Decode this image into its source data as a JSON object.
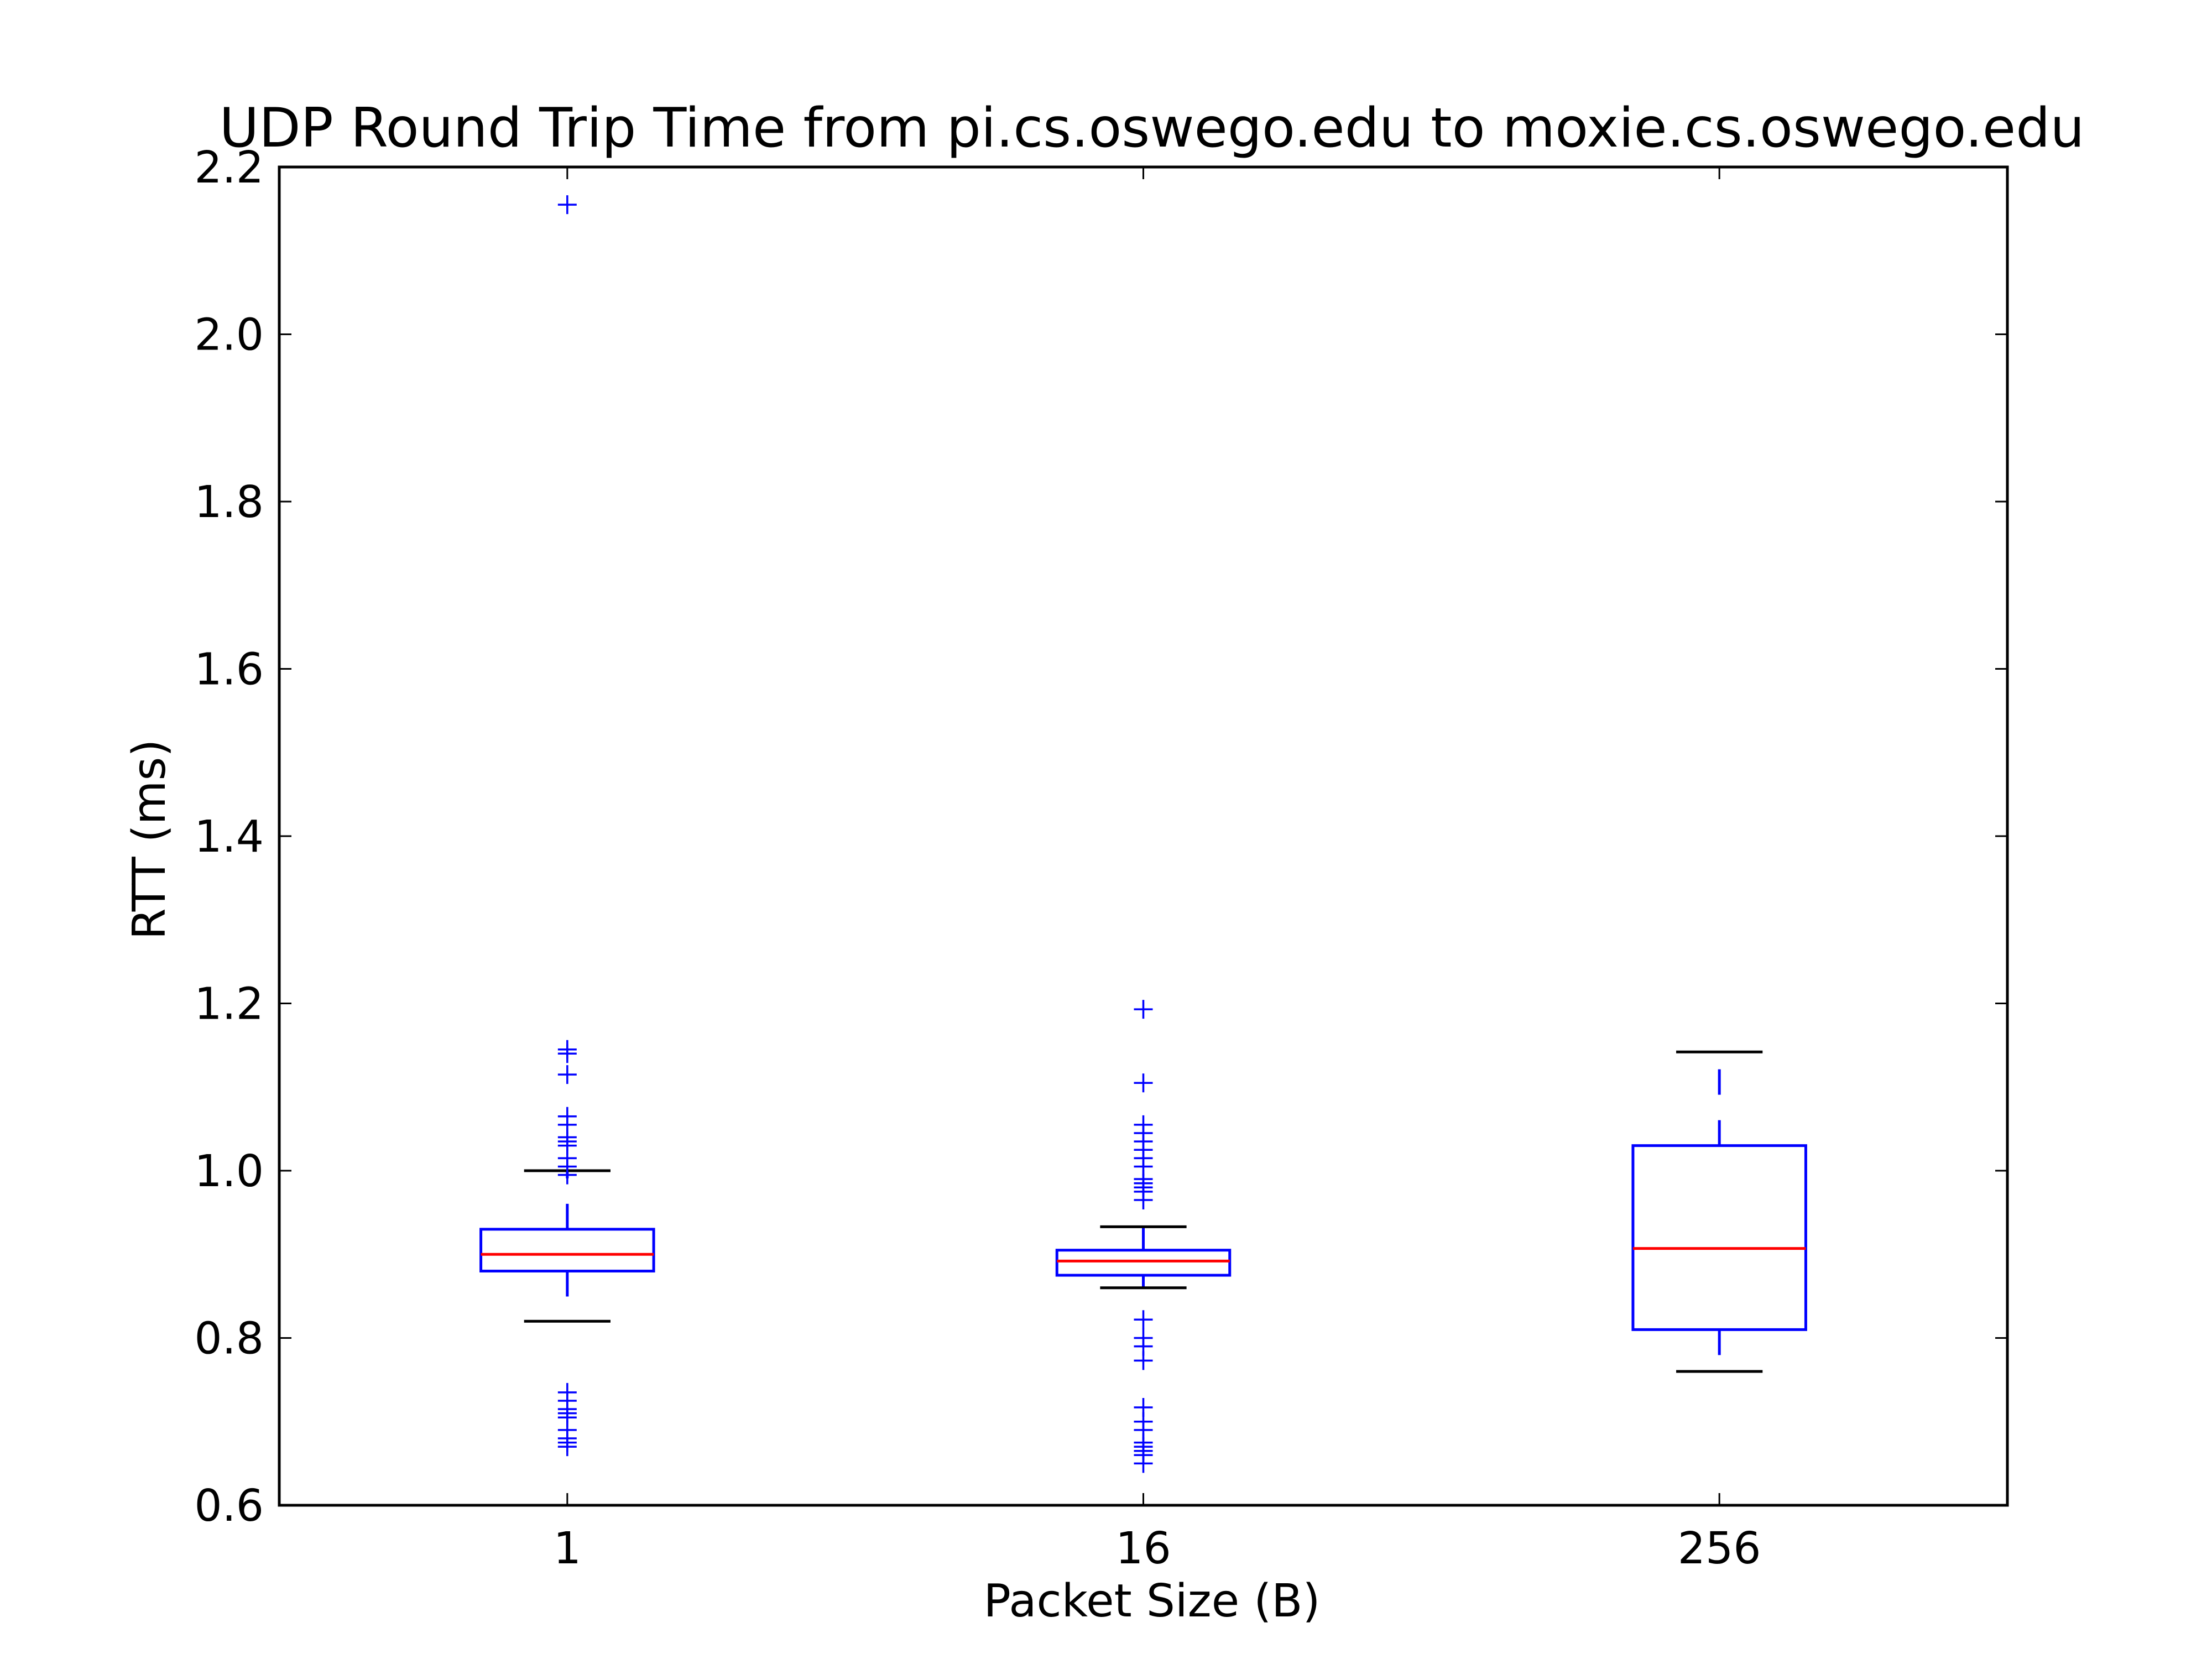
{
  "chart_data": {
    "type": "box",
    "title": "UDP Round Trip Time from pi.cs.oswego.edu to moxie.cs.oswego.edu",
    "xlabel": "Packet Size (B)",
    "ylabel": "RTT (ms)",
    "categories": [
      "1",
      "16",
      "256"
    ],
    "ylim": [
      0.6,
      2.2
    ],
    "yticks": [
      0.6,
      0.8,
      1.0,
      1.2,
      1.4,
      1.6,
      1.8,
      2.0,
      2.2
    ],
    "ytick_labels": [
      "0.6",
      "0.8",
      "1.0",
      "1.2",
      "1.4",
      "1.6",
      "1.8",
      "2.0",
      "2.2"
    ],
    "grid": false,
    "boxes": [
      {
        "category": "1",
        "whisker_low": 0.82,
        "q1": 0.88,
        "median": 0.9,
        "q3": 0.93,
        "whisker_high": 1.0,
        "outliers": [
          2.155,
          1.145,
          1.14,
          1.115,
          1.065,
          1.055,
          1.04,
          1.035,
          1.03,
          1.015,
          1.005,
          0.995,
          0.735,
          0.725,
          0.715,
          0.71,
          0.705,
          0.69,
          0.68,
          0.675,
          0.67
        ]
      },
      {
        "category": "16",
        "whisker_low": 0.86,
        "q1": 0.875,
        "median": 0.892,
        "q3": 0.905,
        "whisker_high": 0.933,
        "outliers": [
          1.193,
          1.105,
          1.055,
          1.045,
          1.035,
          1.025,
          1.015,
          1.005,
          0.99,
          0.985,
          0.98,
          0.975,
          0.965,
          0.822,
          0.8,
          0.79,
          0.773,
          0.717,
          0.7,
          0.69,
          0.675,
          0.67,
          0.665,
          0.66,
          0.65
        ]
      },
      {
        "category": "256",
        "whisker_low": 0.76,
        "q1": 0.81,
        "median": 0.907,
        "q3": 1.03,
        "whisker_high": 1.142,
        "outliers": []
      }
    ],
    "colors": {
      "box": "#0000ff",
      "median": "#ff0000",
      "cap": "#000000",
      "whisker": "#0000ff",
      "outlier": "#0000ff"
    }
  }
}
